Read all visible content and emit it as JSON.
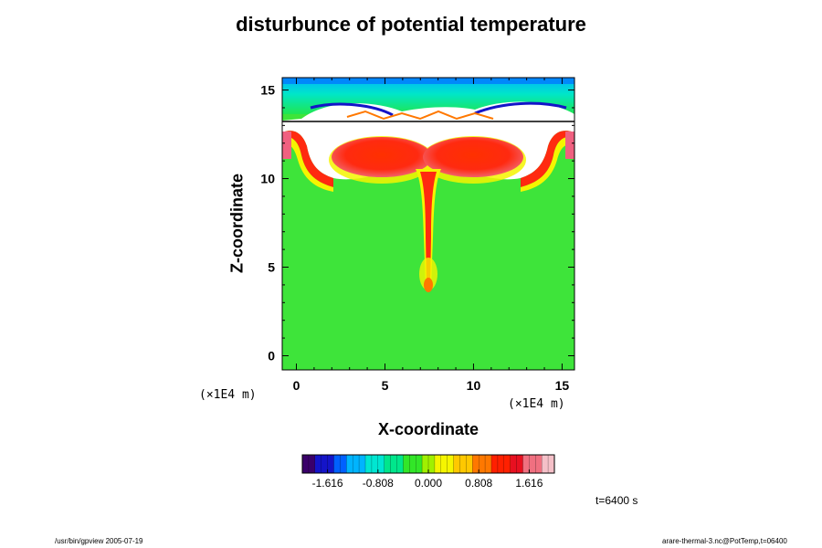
{
  "page": {
    "footer_left": "/usr/bin/gpview 2005-07-19",
    "footer_right": "arare-thermal-3.nc@PotTemp,t=06400",
    "time_label": "t=6400 s"
  },
  "chart_data": {
    "type": "heatmap",
    "title": "disturbunce of potential temperature",
    "xlabel": "X-coordinate",
    "ylabel": "Z-coordinate",
    "x_unit": "(×1E4 m)",
    "y_unit": "(×1E4 m)",
    "xlim": [
      -0.8,
      15.7
    ],
    "ylim": [
      -0.8,
      15.7
    ],
    "xticks": [
      0,
      5,
      10,
      15
    ],
    "yticks": [
      0,
      5,
      10,
      15
    ],
    "colorbar": {
      "ticks": [
        "-1.616",
        "-0.808",
        "0.000",
        "0.808",
        "1.616"
      ],
      "colors": [
        "#3a006a",
        "#1414c8",
        "#0060ff",
        "#00b4ff",
        "#00e6d2",
        "#00e68c",
        "#32e628",
        "#a0f000",
        "#f5f500",
        "#ffc800",
        "#ff7800",
        "#ff2000",
        "#e81020",
        "#f07080",
        "#f5c0c8"
      ]
    }
  }
}
